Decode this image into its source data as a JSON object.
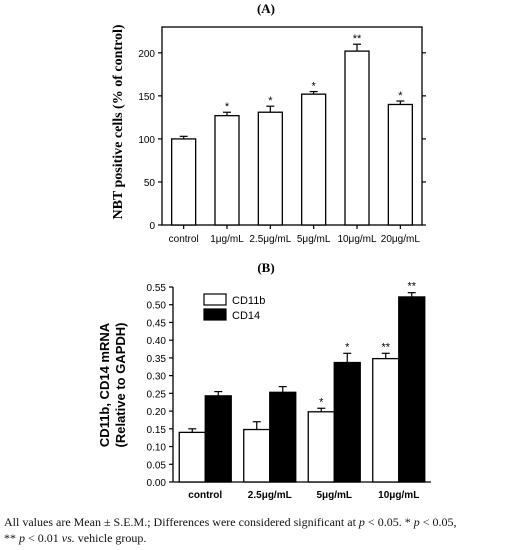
{
  "chart_data": [
    {
      "type": "bar",
      "title": "(A)",
      "ylabel": "NBT positive cells (% of control)",
      "xlabel": "",
      "categories": [
        "control",
        "1μg/mL",
        "2.5μg/mL",
        "5μg/mL",
        "10μg/mL",
        "20μg/mL"
      ],
      "values": [
        100,
        127,
        131,
        152,
        202,
        140
      ],
      "errors": [
        3,
        4,
        7,
        3,
        8,
        4
      ],
      "significance": [
        "",
        "*",
        "*",
        "*",
        "**",
        "*"
      ],
      "ylim": [
        0,
        230
      ],
      "yticks": [
        "0",
        "50",
        "100",
        "150",
        "200"
      ],
      "ytick_values": [
        0,
        50,
        100,
        150,
        200
      ],
      "bar_color": "#ffffff",
      "edge_color": "#000000"
    },
    {
      "type": "bar",
      "title": "(B)",
      "ylabel_line1": "CD11b, CD14 mRNA",
      "ylabel_line2": "(Relative to GAPDH)",
      "xlabel": "",
      "categories": [
        "control",
        "2.5μg/mL",
        "5μg/mL",
        "10μg/mL"
      ],
      "series": [
        {
          "name": "CD11b",
          "values": [
            0.14,
            0.148,
            0.198,
            0.348
          ],
          "errors": [
            0.01,
            0.022,
            0.01,
            0.015
          ],
          "significance": [
            "",
            "",
            "*",
            "**"
          ],
          "color": "#ffffff"
        },
        {
          "name": "CD14",
          "values": [
            0.243,
            0.253,
            0.337,
            0.522
          ],
          "errors": [
            0.012,
            0.016,
            0.026,
            0.012
          ],
          "significance": [
            "",
            "",
            "*",
            "**"
          ],
          "color": "#000000"
        }
      ],
      "ylim": [
        0,
        0.55
      ],
      "yticks": [
        "0.00",
        "0.05",
        "0.10",
        "0.15",
        "0.20",
        "0.25",
        "0.30",
        "0.35",
        "0.40",
        "0.45",
        "0.50",
        "0.55"
      ],
      "ytick_values": [
        0,
        0.05,
        0.1,
        0.15,
        0.2,
        0.25,
        0.3,
        0.35,
        0.4,
        0.45,
        0.5,
        0.55
      ],
      "legend_position": "top-left"
    }
  ],
  "caption": {
    "p1": "All values are Mean ± S.E.M.; Differences were considered significant at ",
    "p": "p",
    "p2": " < 0.05. * ",
    "p3": " < 0.05,",
    "p4": "** ",
    "p5": " < 0.01 ",
    "vs": "vs.",
    "p6": " vehicle group."
  }
}
